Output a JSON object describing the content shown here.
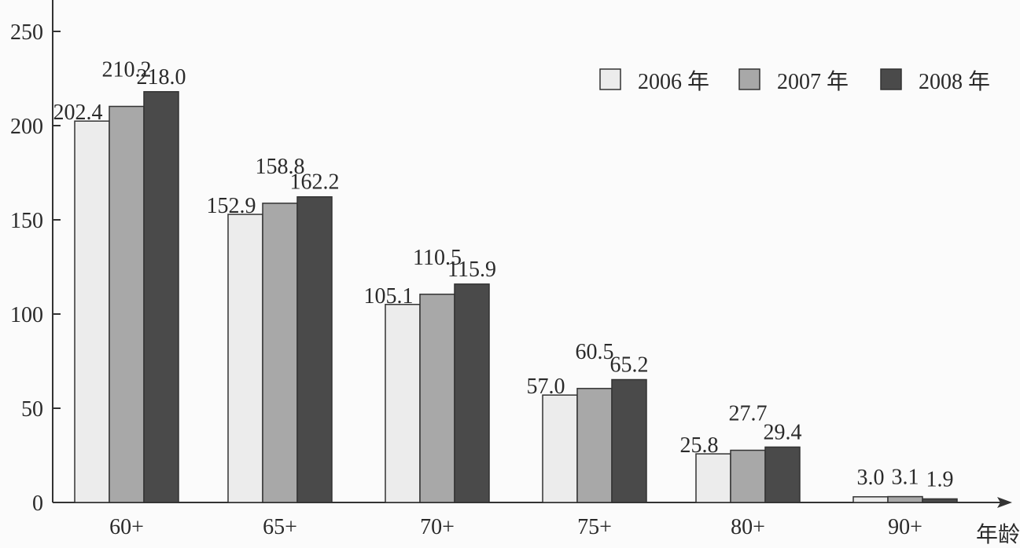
{
  "chart_data": {
    "type": "bar",
    "title": "",
    "xlabel": "年龄",
    "ylabel": "",
    "ylim": [
      0,
      250
    ],
    "yticks": [
      0,
      50,
      100,
      150,
      200,
      250
    ],
    "categories": [
      "60+",
      "65+",
      "70+",
      "75+",
      "80+",
      "90+"
    ],
    "series": [
      {
        "name": "2006 年",
        "values": [
          202.4,
          152.9,
          105.1,
          57.0,
          25.8,
          3.0
        ],
        "color": "#ececec"
      },
      {
        "name": "2007 年",
        "values": [
          210.2,
          158.8,
          110.5,
          60.5,
          27.7,
          3.1
        ],
        "color": "#a8a8a8"
      },
      {
        "name": "2008 年",
        "values": [
          218.0,
          162.2,
          115.9,
          65.2,
          29.4,
          1.9
        ],
        "color": "#4a4a4a"
      }
    ],
    "value_labels": [
      [
        "202.4",
        "152.9",
        "105.1",
        "57.0",
        "25.8",
        "3.0"
      ],
      [
        "210.2",
        "158.8",
        "110.5",
        "60.5",
        "27.7",
        "3.1"
      ],
      [
        "218.0",
        "162.2",
        "115.9",
        "65.2",
        "29.4",
        "1.9"
      ]
    ],
    "grid": false,
    "legend_placement": "top-right"
  }
}
